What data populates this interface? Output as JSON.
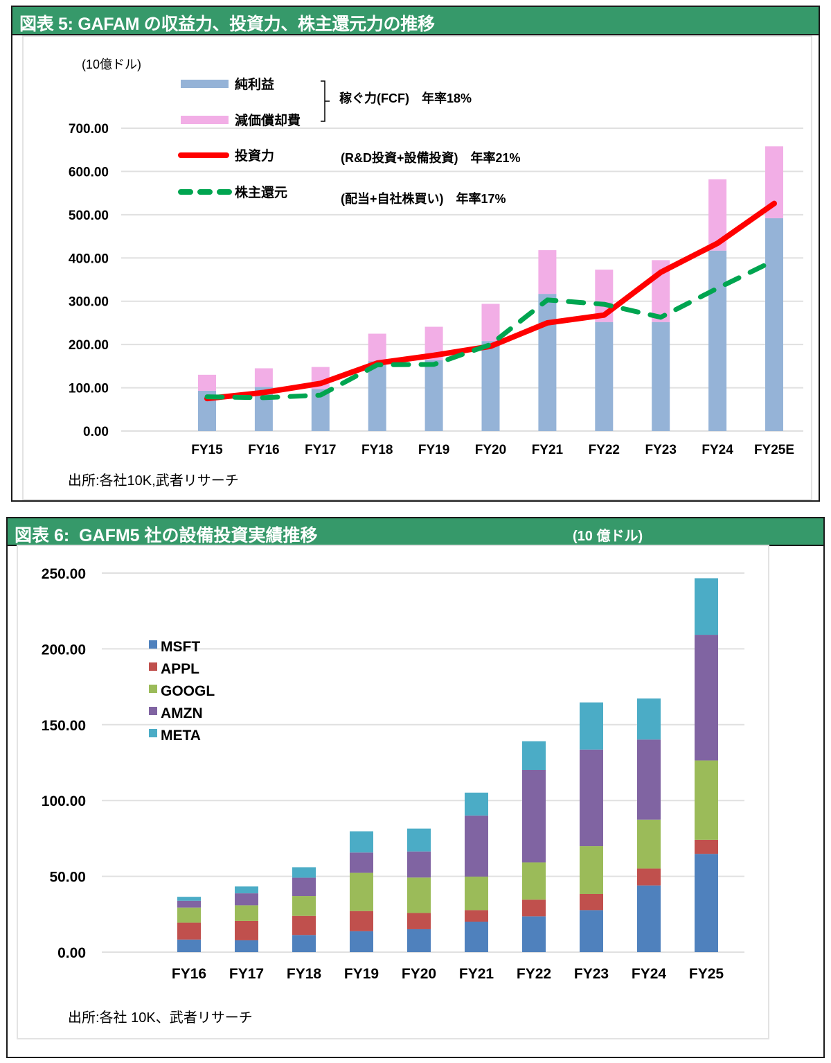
{
  "figure5": {
    "title": "図表 5: GAFAM の収益力、投資力、株主還元力の推移",
    "unit": "(10億ドル)",
    "legend": {
      "net_income": "純利益",
      "depreciation": "減価償却費",
      "bracket_note": "稼ぐ力(FCF)　年率18%",
      "investment": "投資力",
      "investment_note": "(R&D投資+設備投資)　年率21%",
      "shareholder_return": "株主還元",
      "shareholder_return_note": "(配当+自社株買い)　年率17%"
    },
    "source": "出所:各社10K,武者リサーチ"
  },
  "figure6": {
    "title": "図表 6:  GAFM5 社の設備投資実績推移",
    "unit": "(10 億ドル)",
    "source": "出所:各社 10K、武者リサーチ"
  },
  "chart_data": [
    {
      "type": "bar",
      "subtype": "stacked bar + line",
      "title": "図表 5: GAFAM の収益力、投資力、株主還元力の推移",
      "ylabel": "(10億ドル)",
      "xlabel": "",
      "ylim": [
        0,
        700
      ],
      "yticks": [
        "0.00",
        "100.00",
        "200.00",
        "300.00",
        "400.00",
        "500.00",
        "600.00",
        "700.00"
      ],
      "grid": true,
      "legend_position": "top-left",
      "categories": [
        "FY15",
        "FY16",
        "FY17",
        "FY18",
        "FY19",
        "FY20",
        "FY21",
        "FY22",
        "FY23",
        "FY24",
        "FY25E"
      ],
      "series": [
        {
          "name": "純利益",
          "kind": "bar",
          "color": "#95b3d7",
          "values": [
            93,
            102,
            97,
            161,
            164,
            208,
            317,
            252,
            252,
            417,
            492
          ]
        },
        {
          "name": "減価償却費",
          "kind": "bar",
          "color": "#f2aee6",
          "values": [
            37,
            43,
            51,
            64,
            77,
            86,
            101,
            121,
            143,
            165,
            166
          ]
        },
        {
          "name": "投資力",
          "kind": "line",
          "color": "#ff0000",
          "dashed": false,
          "values": [
            75,
            89,
            110,
            157,
            175,
            196,
            250,
            268,
            367,
            434,
            526
          ]
        },
        {
          "name": "株主還元",
          "kind": "line",
          "color": "#00a550",
          "dashed": true,
          "values": [
            79,
            77,
            83,
            153,
            154,
            200,
            303,
            293,
            263,
            330,
            394
          ]
        }
      ]
    },
    {
      "type": "bar",
      "subtype": "stacked",
      "title": "図表 6:  GAFM5 社の設備投資実績推移",
      "ylabel": "(10 億ドル)",
      "xlabel": "",
      "ylim": [
        0,
        250
      ],
      "yticks": [
        "0.00",
        "50.00",
        "100.00",
        "150.00",
        "200.00",
        "250.00"
      ],
      "grid": true,
      "legend_position": "top-left",
      "categories": [
        "FY16",
        "FY17",
        "FY18",
        "FY19",
        "FY20",
        "FY21",
        "FY22",
        "FY23",
        "FY24",
        "FY25"
      ],
      "series": [
        {
          "name": "MSFT",
          "color": "#4f81bd",
          "values": [
            8.3,
            7.8,
            11.3,
            13.8,
            15.1,
            20.1,
            23.6,
            27.7,
            44.0,
            64.8
          ]
        },
        {
          "name": "APPL",
          "color": "#c0504d",
          "values": [
            11.1,
            12.8,
            12.6,
            13.3,
            10.7,
            7.6,
            11.0,
            10.7,
            11.1,
            9.3
          ]
        },
        {
          "name": "GOOGL",
          "color": "#9bbb59",
          "values": [
            10.0,
            10.3,
            13.1,
            25.2,
            23.4,
            22.1,
            24.6,
            31.5,
            32.3,
            52.3
          ]
        },
        {
          "name": "AMZN",
          "color": "#8064a2",
          "values": [
            4.5,
            7.9,
            12.1,
            13.4,
            17.2,
            40.3,
            61.0,
            63.7,
            52.8,
            82.9
          ]
        },
        {
          "name": "META",
          "color": "#4bacc6",
          "values": [
            2.6,
            4.5,
            6.9,
            14.0,
            15.1,
            15.1,
            18.9,
            31.1,
            27.1,
            37.3
          ]
        }
      ]
    }
  ]
}
